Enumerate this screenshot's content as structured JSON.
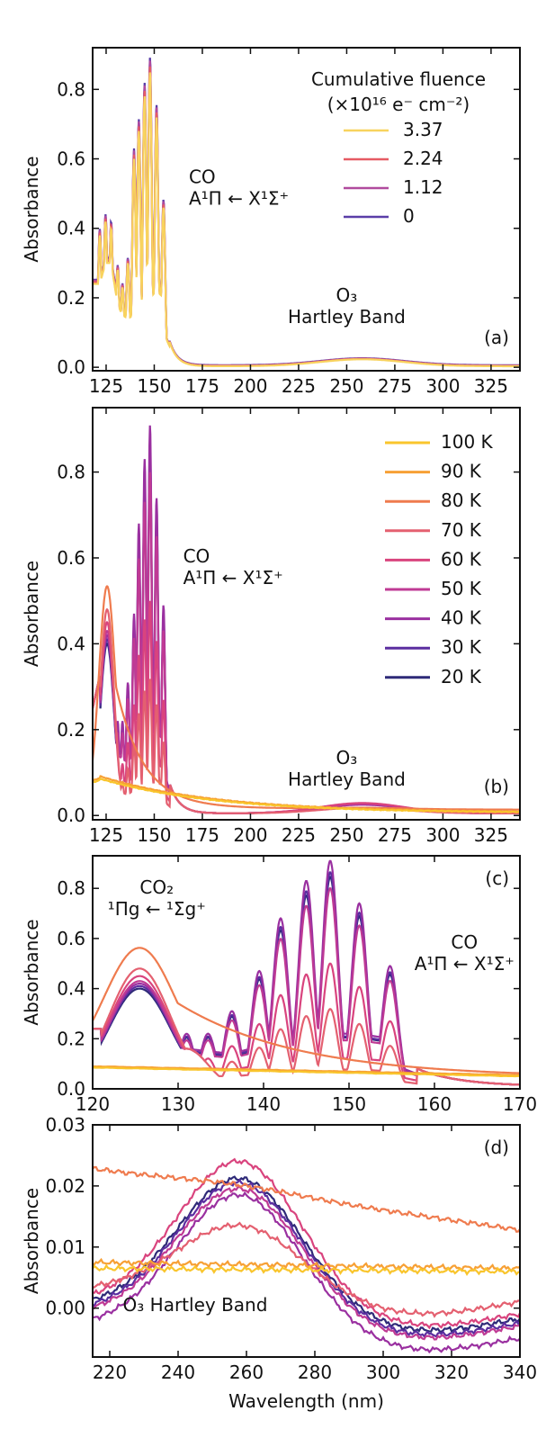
{
  "figure": {
    "annotation_text": {
      "co_band": "A¹Π ← X¹Σ⁺",
      "co2_band": "¹Πg ← ¹Σg⁺"
    }
  },
  "chart_data": [
    {
      "panel": "(a)",
      "type": "line",
      "xlabel": "",
      "ylabel": "Absorbance",
      "xlim": [
        118,
        340
      ],
      "ylim": [
        -0.01,
        0.92
      ],
      "xticks": [
        125,
        150,
        175,
        200,
        225,
        250,
        275,
        300,
        325
      ],
      "yticks": [
        0.0,
        0.2,
        0.4,
        0.6,
        0.8
      ],
      "ytick_format": "1",
      "legend": {
        "position": "top-right",
        "title_line1": "Cumulative fluence",
        "title_line2": "(×10¹⁶ e⁻ cm⁻²)"
      },
      "annotations": [
        {
          "x": 168,
          "y": 0.53,
          "line1": "CO",
          "line2": "A¹Π ← X¹Σ⁺",
          "anchor": "start"
        },
        {
          "x": 250,
          "y": 0.19,
          "line1": "O₃",
          "line2": "Hartley Band",
          "anchor": "middle"
        }
      ],
      "series": [
        {
          "name": "3.37",
          "color": "#f8d35e",
          "scale": 1.0,
          "baseline": 0.003
        },
        {
          "name": "2.24",
          "color": "#e65b64",
          "scale": 1.02,
          "baseline": 0.004
        },
        {
          "name": "1.12",
          "color": "#b04a9e",
          "scale": 1.04,
          "baseline": 0.005
        },
        {
          "name": "0",
          "color": "#5a3ea8",
          "scale": 1.05,
          "baseline": 0.006
        }
      ],
      "profile": {
        "peak_wavelengths": [
          121.7,
          124.7,
          127.6,
          131.0,
          133.5,
          136.3,
          139.5,
          142.0,
          145.0,
          147.8,
          151.2,
          154.8
        ],
        "peak_values": [
          0.38,
          0.42,
          0.4,
          0.28,
          0.23,
          0.3,
          0.6,
          0.68,
          0.78,
          0.85,
          0.72,
          0.46
        ],
        "trough_values": [
          0.24,
          0.3,
          0.3,
          0.18,
          0.15,
          0.14,
          0.15,
          0.17,
          0.18,
          0.2,
          0.22,
          0.2,
          0.07
        ],
        "hartley_peak": 0.02,
        "hartley_center": 258
      }
    },
    {
      "panel": "(b)",
      "type": "line",
      "xlabel": "",
      "ylabel": "Absorbance",
      "xlim": [
        118,
        340
      ],
      "ylim": [
        -0.01,
        0.95
      ],
      "xticks": [
        125,
        150,
        175,
        200,
        225,
        250,
        275,
        300,
        325
      ],
      "yticks": [
        0.0,
        0.2,
        0.4,
        0.6,
        0.8
      ],
      "ytick_format": "1",
      "legend": {
        "position": "top-right"
      },
      "annotations": [
        {
          "x": 165,
          "y": 0.59,
          "line1": "CO",
          "line2": "A¹Π ← X¹Σ⁺",
          "anchor": "start"
        },
        {
          "x": 250,
          "y": 0.12,
          "line1": "O₃",
          "line2": "Hartley Band",
          "anchor": "middle"
        }
      ],
      "series": [
        {
          "name": "100 K",
          "color": "#f9c52c",
          "kind": "flat",
          "level": 0.085,
          "tail": 0.006
        },
        {
          "name": "90 K",
          "color": "#f7a035",
          "kind": "flat",
          "level": 0.09,
          "tail": 0.007
        },
        {
          "name": "80 K",
          "color": "#ef7b4e",
          "kind": "broad",
          "level": 0.51,
          "tail": 0.013
        },
        {
          "name": "70 K",
          "color": "#e46070",
          "kind": "peaks",
          "co_scale": 0.35,
          "co2": 0.48,
          "hartley": 0.013
        },
        {
          "name": "60 K",
          "color": "#d9447e",
          "kind": "peaks",
          "co_scale": 0.55,
          "co2": 0.45,
          "hartley": 0.024
        },
        {
          "name": "50 K",
          "color": "#bf3a94",
          "kind": "peaks",
          "co_scale": 0.88,
          "co2": 0.43,
          "hartley": 0.022
        },
        {
          "name": "40 K",
          "color": "#9a30a0",
          "kind": "peaks",
          "co_scale": 1.0,
          "co2": 0.42,
          "hartley": 0.02
        },
        {
          "name": "30 K",
          "color": "#5b2ea0",
          "kind": "peaks",
          "co_scale": 0.95,
          "co2": 0.41,
          "hartley": 0.021
        },
        {
          "name": "20 K",
          "color": "#2e2a78",
          "kind": "peaks",
          "co_scale": 0.93,
          "co2": 0.4,
          "hartley": 0.022
        }
      ],
      "co_profile": {
        "peak_wavelengths": [
          131.0,
          133.5,
          136.3,
          139.5,
          142.0,
          145.0,
          147.8,
          151.2,
          154.8
        ],
        "peak_values": [
          0.22,
          0.22,
          0.31,
          0.47,
          0.68,
          0.83,
          0.91,
          0.74,
          0.49
        ],
        "trough_values": [
          0.16,
          0.15,
          0.14,
          0.17,
          0.19,
          0.2,
          0.22,
          0.22,
          0.2,
          0.07
        ]
      }
    },
    {
      "panel": "(c)",
      "type": "line",
      "xlabel": "",
      "ylabel": "Absorbance",
      "xlim": [
        120,
        170
      ],
      "ylim": [
        0.0,
        0.93
      ],
      "xticks": [
        120,
        130,
        140,
        150,
        160,
        170
      ],
      "yticks": [
        0.0,
        0.2,
        0.4,
        0.6,
        0.8
      ],
      "ytick_format": "1",
      "annotations": [
        {
          "x": 127.5,
          "y": 0.78,
          "line1": "CO₂",
          "line2": "¹Πg ← ¹Σg⁺",
          "anchor": "middle"
        },
        {
          "x": 163.5,
          "y": 0.56,
          "line1": "CO",
          "line2": "A¹Π ← X¹Σ⁺",
          "anchor": "middle"
        }
      ]
    },
    {
      "panel": "(d)",
      "type": "line",
      "xlabel": "Wavelength (nm)",
      "ylabel": "Absorbance",
      "xlim": [
        215,
        340
      ],
      "ylim": [
        -0.008,
        0.03
      ],
      "xticks": [
        220,
        240,
        260,
        280,
        300,
        320,
        340
      ],
      "yticks": [
        0.0,
        0.01,
        0.02,
        0.03
      ],
      "ytick_format": "2",
      "annotations": [
        {
          "x": 245,
          "y": -0.0005,
          "line1": "O₃ Hartley Band",
          "line2": "",
          "anchor": "middle"
        }
      ]
    }
  ]
}
